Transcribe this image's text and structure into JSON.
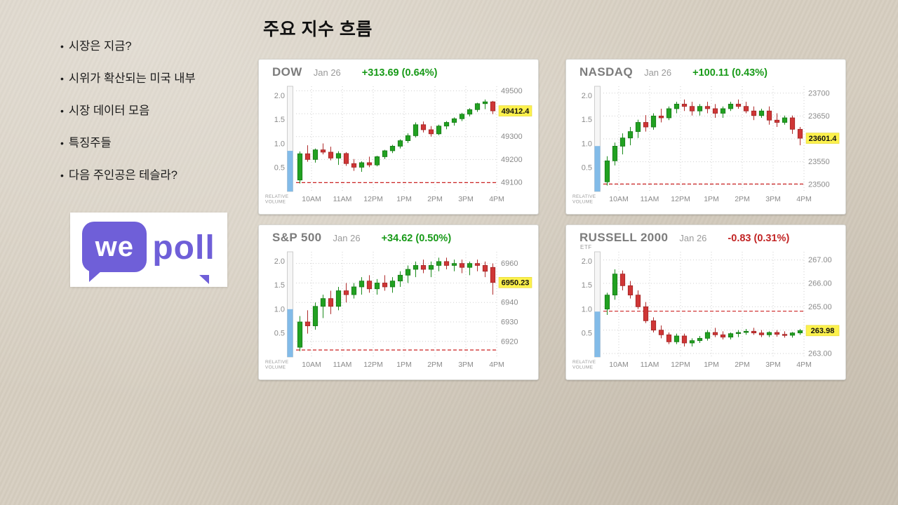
{
  "slide": {
    "title": "주요 지수 흐름",
    "bullets": [
      "시장은 지금?",
      "시위가 확산되는 미국 내부",
      "시장 데이터 모음",
      "특징주들",
      "다음 주인공은 테슬라?"
    ],
    "logo": {
      "we": "we",
      "poll": "poll",
      "purple": "#6f5fd8"
    },
    "colors": {
      "up_green": "#189a18",
      "down_red": "#c22525",
      "last_price_highlight": "#fcf14c",
      "volume_blue": "#82bbe8",
      "prev_close_red": "#cc2222"
    }
  },
  "chart_data": [
    {
      "type": "candlestick",
      "title": "DOW",
      "subtitle": "",
      "date": "Jan 26",
      "change_label": "+313.69 (0.64%)",
      "direction": "up",
      "last_price": "49412.4",
      "last_close": 49412.4,
      "prev_close": 49098.71,
      "ylim": [
        49060,
        49520
      ],
      "yticks": [
        49500,
        49400,
        49300,
        49200,
        49100
      ],
      "ytick_labels": [
        "49500",
        "49400",
        "49300",
        "49200",
        "49100"
      ],
      "xtick_labels": [
        "10AM",
        "11AM",
        "12PM",
        "1PM",
        "2PM",
        "3PM",
        "4PM"
      ],
      "vol_axis": {
        "ticks": [
          2.0,
          1.5,
          1.0,
          0.5
        ],
        "labels": [
          "2.0",
          "1.5",
          "1.0",
          "0.5"
        ],
        "max": 2.2,
        "relative_volume": 0.85,
        "label_lines": [
          "RELATIVE",
          "VOLUME"
        ]
      },
      "candles": [
        [
          49110,
          49235,
          49095,
          49225
        ],
        [
          49225,
          49262,
          49190,
          49200
        ],
        [
          49200,
          49248,
          49186,
          49242
        ],
        [
          49242,
          49270,
          49222,
          49232
        ],
        [
          49232,
          49256,
          49196,
          49206
        ],
        [
          49206,
          49236,
          49176,
          49226
        ],
        [
          49226,
          49232,
          49172,
          49182
        ],
        [
          49182,
          49202,
          49150,
          49166
        ],
        [
          49166,
          49192,
          49146,
          49186
        ],
        [
          49186,
          49212,
          49166,
          49176
        ],
        [
          49176,
          49216,
          49170,
          49212
        ],
        [
          49212,
          49242,
          49202,
          49238
        ],
        [
          49238,
          49264,
          49228,
          49258
        ],
        [
          49258,
          49288,
          49248,
          49282
        ],
        [
          49282,
          49314,
          49272,
          49304
        ],
        [
          49304,
          49362,
          49296,
          49352
        ],
        [
          49352,
          49366,
          49318,
          49330
        ],
        [
          49330,
          49346,
          49300,
          49312
        ],
        [
          49312,
          49352,
          49306,
          49346
        ],
        [
          49346,
          49368,
          49332,
          49362
        ],
        [
          49362,
          49384,
          49348,
          49378
        ],
        [
          49378,
          49404,
          49368,
          49398
        ],
        [
          49398,
          49424,
          49388,
          49418
        ],
        [
          49418,
          49448,
          49408,
          49444
        ],
        [
          49444,
          49462,
          49420,
          49452
        ],
        [
          49452,
          49456,
          49398,
          49412.4
        ]
      ]
    },
    {
      "type": "candlestick",
      "title": "NASDAQ",
      "subtitle": "",
      "date": "Jan 26",
      "change_label": "+100.11 (0.43%)",
      "direction": "up",
      "last_price": "23601.4",
      "last_close": 23601.4,
      "prev_close": 23501.29,
      "ylim": [
        23485,
        23715
      ],
      "yticks": [
        23700,
        23650,
        23600,
        23550,
        23500
      ],
      "ytick_labels": [
        "23700",
        "23650",
        "23600",
        "23550",
        "23500"
      ],
      "xtick_labels": [
        "10AM",
        "11AM",
        "12PM",
        "1PM",
        "2PM",
        "3PM",
        "4PM"
      ],
      "vol_axis": {
        "ticks": [
          2.0,
          1.5,
          1.0,
          0.5
        ],
        "labels": [
          "2.0",
          "1.5",
          "1.0",
          "0.5"
        ],
        "max": 2.2,
        "relative_volume": 0.95,
        "label_lines": [
          "RELATIVE",
          "VOLUME"
        ]
      },
      "candles": [
        [
          23506,
          23562,
          23498,
          23552
        ],
        [
          23552,
          23592,
          23542,
          23584
        ],
        [
          23584,
          23612,
          23566,
          23602
        ],
        [
          23602,
          23626,
          23586,
          23616
        ],
        [
          23616,
          23642,
          23602,
          23636
        ],
        [
          23636,
          23652,
          23616,
          23626
        ],
        [
          23626,
          23656,
          23620,
          23650
        ],
        [
          23650,
          23666,
          23636,
          23646
        ],
        [
          23646,
          23671,
          23641,
          23666
        ],
        [
          23666,
          23681,
          23656,
          23676
        ],
        [
          23676,
          23686,
          23661,
          23671
        ],
        [
          23671,
          23681,
          23651,
          23661
        ],
        [
          23661,
          23676,
          23651,
          23671
        ],
        [
          23671,
          23681,
          23656,
          23666
        ],
        [
          23666,
          23676,
          23646,
          23656
        ],
        [
          23656,
          23671,
          23646,
          23666
        ],
        [
          23666,
          23681,
          23661,
          23676
        ],
        [
          23676,
          23686,
          23666,
          23671
        ],
        [
          23671,
          23681,
          23656,
          23661
        ],
        [
          23661,
          23671,
          23641,
          23651
        ],
        [
          23651,
          23666,
          23646,
          23661
        ],
        [
          23661,
          23671,
          23631,
          23641
        ],
        [
          23641,
          23656,
          23626,
          23636
        ],
        [
          23636,
          23651,
          23631,
          23646
        ],
        [
          23646,
          23651,
          23611,
          23621
        ],
        [
          23621,
          23626,
          23586,
          23601.4
        ]
      ]
    },
    {
      "type": "candlestick",
      "title": "S&P 500",
      "subtitle": "",
      "date": "Jan 26",
      "change_label": "+34.62 (0.50%)",
      "direction": "up",
      "last_price": "6950.23",
      "last_close": 6950.23,
      "prev_close": 6915.61,
      "ylim": [
        6912,
        6966
      ],
      "yticks": [
        6960,
        6950,
        6940,
        6930,
        6920
      ],
      "ytick_labels": [
        "6960",
        "6950",
        "6940",
        "6930",
        "6920"
      ],
      "xtick_labels": [
        "10AM",
        "11AM",
        "12PM",
        "1PM",
        "2PM",
        "3PM",
        "4PM"
      ],
      "vol_axis": {
        "ticks": [
          2.0,
          1.5,
          1.0,
          0.5
        ],
        "labels": [
          "2.0",
          "1.5",
          "1.0",
          "0.5"
        ],
        "max": 2.2,
        "relative_volume": 1.0,
        "label_lines": [
          "RELATIVE",
          "VOLUME"
        ]
      },
      "candles": [
        [
          6917,
          6933,
          6915,
          6930
        ],
        [
          6930,
          6936,
          6924,
          6928
        ],
        [
          6928,
          6940,
          6926,
          6938
        ],
        [
          6938,
          6944,
          6932,
          6942
        ],
        [
          6942,
          6946,
          6934,
          6938
        ],
        [
          6938,
          6948,
          6936,
          6946
        ],
        [
          6946,
          6950,
          6940,
          6944
        ],
        [
          6944,
          6950,
          6942,
          6948
        ],
        [
          6948,
          6953,
          6944,
          6951
        ],
        [
          6951,
          6954,
          6945,
          6947
        ],
        [
          6947,
          6952,
          6944,
          6950
        ],
        [
          6950,
          6954,
          6946,
          6948
        ],
        [
          6948,
          6953,
          6945,
          6951
        ],
        [
          6951,
          6956,
          6948,
          6954
        ],
        [
          6954,
          6959,
          6950,
          6957
        ],
        [
          6957,
          6961,
          6953,
          6959
        ],
        [
          6959,
          6962,
          6955,
          6957
        ],
        [
          6957,
          6961,
          6953,
          6959
        ],
        [
          6959,
          6963,
          6956,
          6961
        ],
        [
          6961,
          6963,
          6957,
          6959
        ],
        [
          6959,
          6962,
          6956,
          6960
        ],
        [
          6960,
          6962,
          6955,
          6958
        ],
        [
          6958,
          6961,
          6954,
          6960
        ],
        [
          6960,
          6962,
          6956,
          6959
        ],
        [
          6959,
          6961,
          6953,
          6956
        ],
        [
          6958,
          6960,
          6944,
          6950.23
        ]
      ]
    },
    {
      "type": "candlestick",
      "title": "RUSSELL 2000",
      "subtitle": "ETF",
      "date": "Jan 26",
      "change_label": "-0.83 (0.31%)",
      "direction": "down",
      "last_price": "263.98",
      "last_close": 263.98,
      "prev_close": 264.81,
      "ylim": [
        262.85,
        267.35
      ],
      "yticks": [
        267.0,
        266.0,
        265.0,
        264.0,
        263.0
      ],
      "ytick_labels": [
        "267.00",
        "266.00",
        "265.00",
        "264.00",
        "263.00"
      ],
      "xtick_labels": [
        "10AM",
        "11AM",
        "12PM",
        "1PM",
        "2PM",
        "3PM",
        "4PM"
      ],
      "vol_axis": {
        "ticks": [
          2.0,
          1.5,
          1.0,
          0.5
        ],
        "labels": [
          "2.0",
          "1.5",
          "1.0",
          "0.5"
        ],
        "max": 2.2,
        "relative_volume": 0.95,
        "label_lines": [
          "RELATIVE",
          "VOLUME"
        ]
      },
      "candles": [
        [
          264.9,
          265.6,
          264.65,
          265.5
        ],
        [
          265.5,
          266.6,
          265.3,
          266.4
        ],
        [
          266.4,
          266.55,
          265.7,
          265.9
        ],
        [
          265.9,
          266.1,
          265.35,
          265.5
        ],
        [
          265.5,
          265.7,
          264.9,
          265.0
        ],
        [
          265.0,
          265.2,
          264.3,
          264.4
        ],
        [
          264.4,
          264.55,
          263.9,
          264.0
        ],
        [
          264.0,
          264.2,
          263.65,
          263.8
        ],
        [
          263.8,
          263.9,
          263.4,
          263.5
        ],
        [
          263.5,
          263.85,
          263.4,
          263.75
        ],
        [
          263.75,
          263.85,
          263.3,
          263.45
        ],
        [
          263.45,
          263.65,
          263.3,
          263.55
        ],
        [
          263.55,
          263.75,
          263.45,
          263.65
        ],
        [
          263.65,
          264.0,
          263.55,
          263.9
        ],
        [
          263.9,
          264.1,
          263.7,
          263.8
        ],
        [
          263.8,
          263.95,
          263.6,
          263.7
        ],
        [
          263.7,
          263.9,
          263.6,
          263.85
        ],
        [
          263.85,
          264.0,
          263.7,
          263.9
        ],
        [
          263.9,
          264.05,
          263.8,
          263.95
        ],
        [
          263.95,
          264.1,
          263.8,
          263.88
        ],
        [
          263.88,
          264.0,
          263.7,
          263.8
        ],
        [
          263.8,
          263.95,
          263.7,
          263.9
        ],
        [
          263.9,
          264.0,
          263.72,
          263.82
        ],
        [
          263.82,
          263.95,
          263.68,
          263.78
        ],
        [
          263.78,
          263.92,
          263.68,
          263.88
        ],
        [
          263.88,
          264.05,
          263.8,
          263.98
        ]
      ]
    }
  ]
}
